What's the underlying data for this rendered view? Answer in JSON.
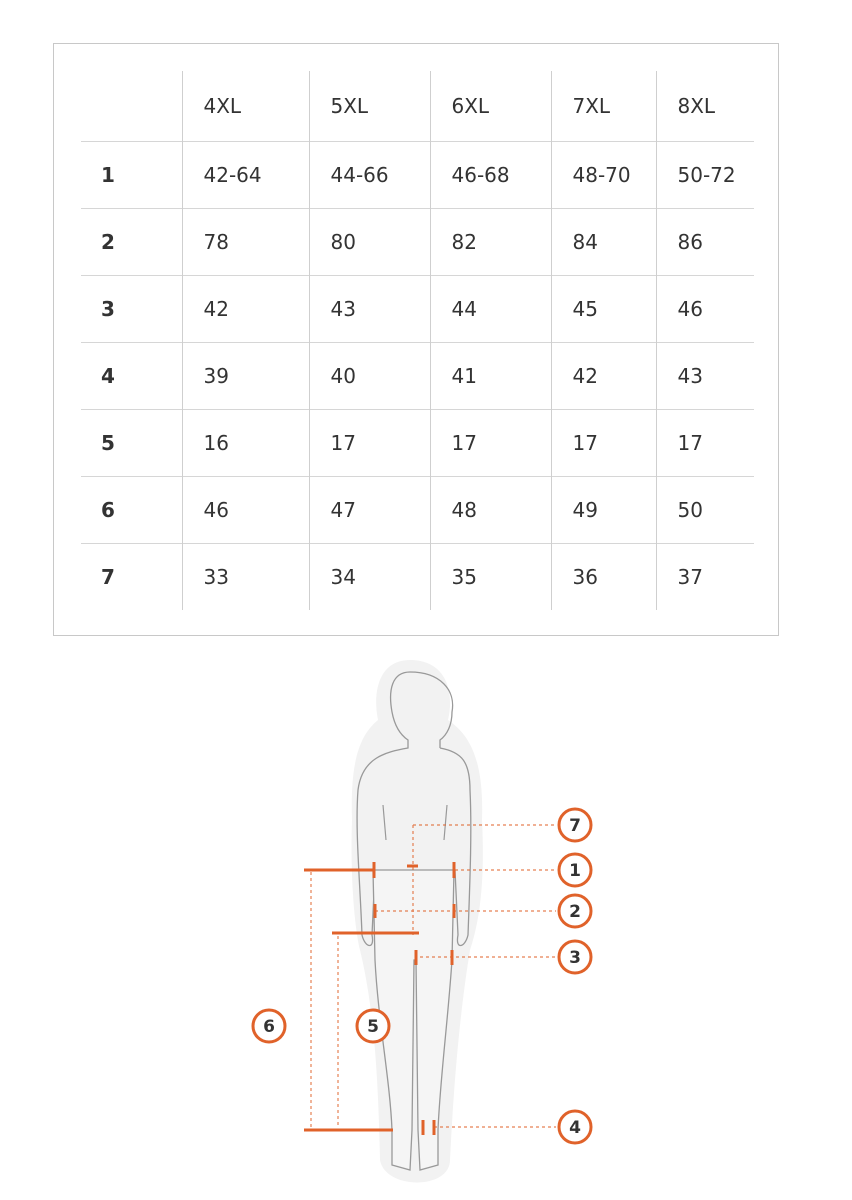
{
  "size_table": {
    "columns": [
      "",
      "4XL",
      "5XL",
      "6XL",
      "7XL",
      "8XL"
    ],
    "rows": [
      {
        "label": "1",
        "values": [
          "42-64",
          "44-66",
          "46-68",
          "48-70",
          "50-72"
        ]
      },
      {
        "label": "2",
        "values": [
          "78",
          "80",
          "82",
          "84",
          "86"
        ]
      },
      {
        "label": "3",
        "values": [
          "42",
          "43",
          "44",
          "45",
          "46"
        ]
      },
      {
        "label": "4",
        "values": [
          "39",
          "40",
          "41",
          "42",
          "43"
        ]
      },
      {
        "label": "5",
        "values": [
          "16",
          "17",
          "17",
          "17",
          "17"
        ]
      },
      {
        "label": "6",
        "values": [
          "46",
          "47",
          "48",
          "49",
          "50"
        ]
      },
      {
        "label": "7",
        "values": [
          "33",
          "34",
          "35",
          "36",
          "37"
        ]
      }
    ]
  },
  "diagram": {
    "markers": [
      "7",
      "1",
      "2",
      "3",
      "6",
      "5",
      "4"
    ],
    "accent_color": "#e0622a"
  }
}
